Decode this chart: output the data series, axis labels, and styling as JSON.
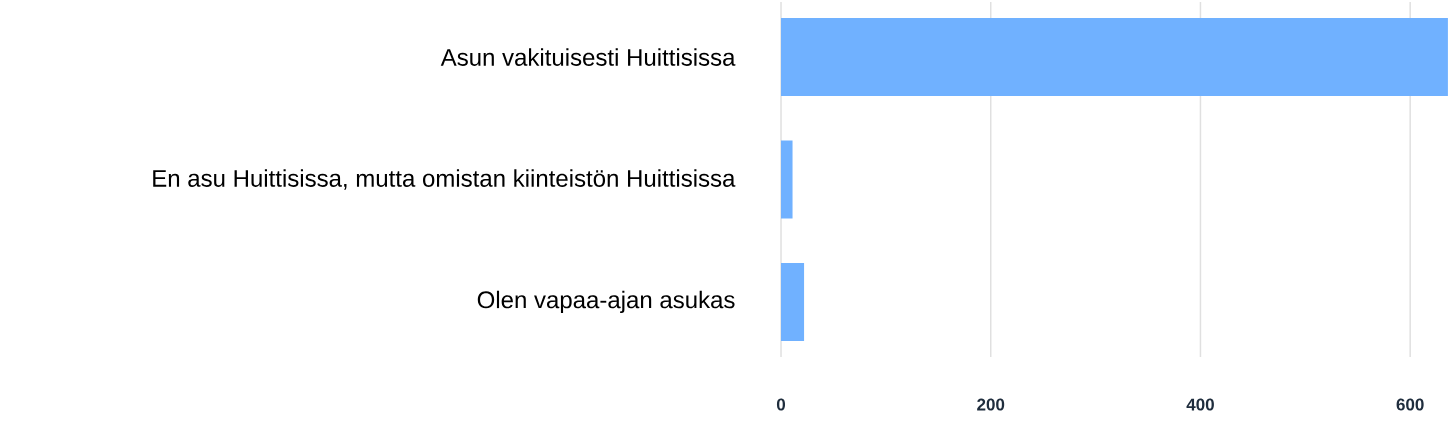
{
  "chart_data": {
    "type": "bar",
    "orientation": "horizontal",
    "categories": [
      "Asun vakituisesti Huittisissa",
      "En asu Huittisissa, mutta omistan kiinteistön Huittisissa",
      "Olen vapaa-ajan asukas"
    ],
    "values": [
      636,
      11,
      22
    ],
    "color": "#70b1ff",
    "xlim": [
      0,
      638
    ],
    "xticks": [
      0,
      200,
      400,
      600
    ],
    "grid": "x"
  }
}
